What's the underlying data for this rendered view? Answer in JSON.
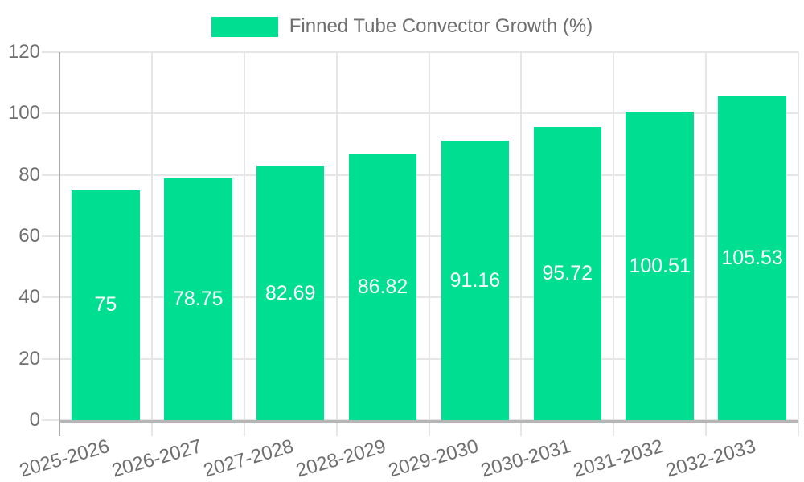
{
  "chart_data": {
    "type": "bar",
    "title": "",
    "xlabel": "",
    "ylabel": "",
    "legend_position": "top",
    "grid": true,
    "series": [
      {
        "name": "Finned Tube Convector Growth (%)",
        "values": [
          75,
          78.75,
          82.69,
          86.82,
          91.16,
          95.72,
          100.51,
          105.53
        ]
      }
    ],
    "categories": [
      "2025-2026",
      "2026-2027",
      "2027-2028",
      "2028-2029",
      "2029-2030",
      "2030-2031",
      "2031-2032",
      "2032-2033"
    ],
    "bar_value_labels": [
      "75",
      "78.75",
      "82.69",
      "86.82",
      "91.16",
      "95.72",
      "100.51",
      "105.53"
    ],
    "ylim": [
      0,
      120
    ],
    "ytick_interval": 20,
    "ytick_labels": [
      "0",
      "20",
      "40",
      "60",
      "80",
      "100",
      "120"
    ],
    "colors": {
      "bar": "#00de91",
      "bar_value_text": "#ffffff",
      "axis_text": "#6f6f6f",
      "grid_line": "#e6e6e6",
      "y_axis_line": "#a9a9a9",
      "x_axis_line": "#b5b5b5"
    }
  }
}
